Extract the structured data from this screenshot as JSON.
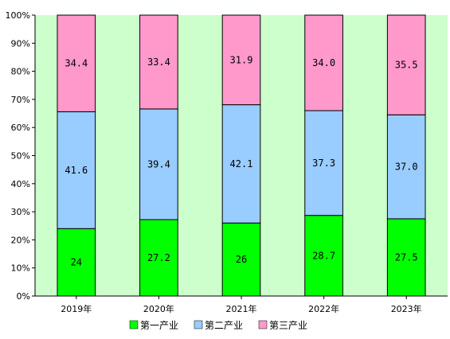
{
  "chart_data": {
    "type": "bar",
    "stacked": true,
    "categories": [
      "2019年",
      "2020年",
      "2021年",
      "2022年",
      "2023年"
    ],
    "series": [
      {
        "name": "第一产业",
        "values": [
          24,
          27.2,
          26,
          28.7,
          27.5
        ],
        "labels": [
          "24",
          "27.2",
          "26",
          "28.7",
          "27.5"
        ],
        "color": "#00ff00"
      },
      {
        "name": "第二产业",
        "values": [
          41.6,
          39.4,
          42.1,
          37.3,
          37.0
        ],
        "labels": [
          "41.6",
          "39.4",
          "42.1",
          "37.3",
          "37.0"
        ],
        "color": "#99ccff"
      },
      {
        "name": "第三产业",
        "values": [
          34.4,
          33.4,
          31.9,
          34.0,
          35.5
        ],
        "labels": [
          "34.4",
          "33.4",
          "31.9",
          "34.0",
          "35.5"
        ],
        "color": "#ff99cc"
      }
    ],
    "yticks": [
      "0%",
      "10%",
      "20%",
      "30%",
      "40%",
      "50%",
      "60%",
      "70%",
      "80%",
      "90%",
      "100%"
    ],
    "ylim": [
      0,
      100
    ],
    "plot_background": "#ccffcc",
    "grid": false,
    "legend_position": "bottom",
    "title": "",
    "xlabel": "",
    "ylabel": ""
  }
}
